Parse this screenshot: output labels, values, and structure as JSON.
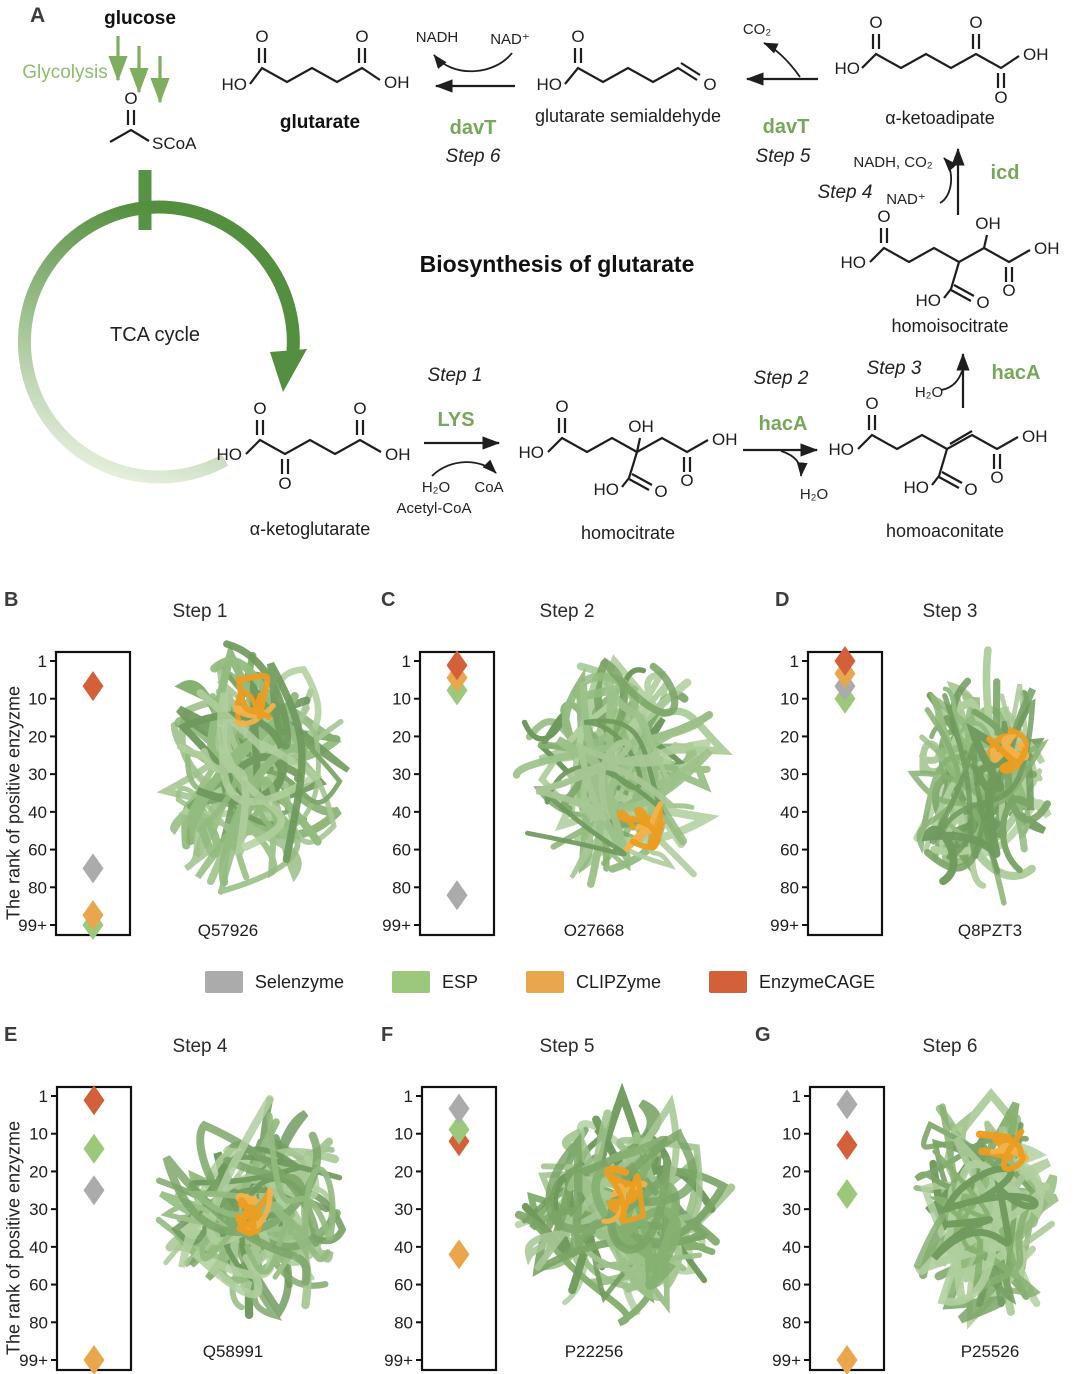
{
  "pathway": {
    "panel_letter": "A",
    "title": "Biosynthesis of glutarate",
    "glucose": "glucose",
    "glycolysis": "Glycolysis",
    "tca": "TCA cycle",
    "acetyl": {
      "o": "O",
      "scoa": "SCoA"
    },
    "molecules": {
      "glutarate": {
        "name": "glutarate",
        "ho": "HO",
        "o1": "O",
        "o2": "O",
        "oh": "OH"
      },
      "semialdehyde": {
        "name": "glutarate semialdehyde",
        "ho": "HO",
        "o1": "O",
        "o2": "O"
      },
      "ketoadipate": {
        "name": "α-ketoadipate",
        "ho": "HO",
        "o1": "O",
        "o2": "O",
        "o3": "O",
        "oh": "OH"
      },
      "homoisocitrate": {
        "name": "homoisocitrate",
        "ho1": "HO",
        "o1": "O",
        "oh1": "OH",
        "oh2": "OH",
        "o2": "O",
        "ho2": "HO",
        "o3": "O"
      },
      "homoaconitate": {
        "name": "homoaconitate",
        "ho1": "HO",
        "o1": "O",
        "oh": "OH",
        "o2": "O",
        "ho2": "HO",
        "o3": "O"
      },
      "homocitrate": {
        "name": "homocitrate",
        "ho1": "HO",
        "o1": "O",
        "oh1": "OH",
        "oh2": "OH",
        "o2": "O",
        "ho2": "HO",
        "o3": "O"
      },
      "ketoglutarate": {
        "name": "α-ketoglutarate",
        "ho": "HO",
        "o1": "O",
        "o2": "O",
        "o3": "O",
        "oh": "OH"
      }
    },
    "reactions": {
      "step1": {
        "label": "Step 1",
        "enzyme": "LYS",
        "sub1": "H₂O",
        "sub2": "Acetyl-CoA",
        "prod1": "CoA"
      },
      "step2": {
        "label": "Step 2",
        "enzyme": "hacA",
        "prod1": "H₂O"
      },
      "step3": {
        "label": "Step 3",
        "enzyme": "hacA",
        "sub1": "H₂O"
      },
      "step4": {
        "label": "Step 4",
        "enzyme": "icd",
        "sub1": "NAD⁺",
        "prod1": "NADH, CO₂"
      },
      "step5": {
        "label": "Step 5",
        "enzyme": "davT",
        "prod1": "CO₂"
      },
      "step6": {
        "label": "Step 6",
        "enzyme": "davT",
        "sub1": "NAD⁺",
        "prod1": "NADH"
      }
    },
    "colors": {
      "enzyme_green": "#76a75a",
      "glycolysis_green": "#8fbc6f",
      "tca_green": "#538f3e"
    }
  },
  "axis": {
    "ylabel": "The rank of positive enzyzme",
    "ticks": [
      "1",
      "10",
      "20",
      "30",
      "40",
      "60",
      "80",
      "99+"
    ]
  },
  "legend": [
    {
      "label": "Selenzyme",
      "color": "#ababab"
    },
    {
      "label": "ESP",
      "color": "#9cc87c"
    },
    {
      "label": "CLIPZyme",
      "color": "#eaa64c"
    },
    {
      "label": "EnzymeCAGE",
      "color": "#d4603a"
    }
  ],
  "chart_data": [
    {
      "type": "scatter",
      "letter": "B",
      "title": "Step 1",
      "protein_id": "Q57926",
      "ylabel": "The rank of positive enzyzme",
      "yticks": [
        "1",
        "10",
        "20",
        "30",
        "40",
        "60",
        "80",
        "99+"
      ],
      "points": [
        {
          "method": "EnzymeCAGE",
          "rank": 7
        },
        {
          "method": "Selenzyme",
          "rank": 70
        },
        {
          "method": "CLIPZyme",
          "rank": 94
        },
        {
          "method": "ESP",
          "rank": 99
        }
      ]
    },
    {
      "type": "scatter",
      "letter": "C",
      "title": "Step 2",
      "protein_id": "O27668",
      "yticks": [
        "1",
        "10",
        "20",
        "30",
        "40",
        "60",
        "80",
        "99+"
      ],
      "points": [
        {
          "method": "EnzymeCAGE",
          "rank": 2
        },
        {
          "method": "CLIPZyme",
          "rank": 5
        },
        {
          "method": "ESP",
          "rank": 8
        },
        {
          "method": "Selenzyme",
          "rank": 84
        }
      ]
    },
    {
      "type": "scatter",
      "letter": "D",
      "title": "Step 3",
      "protein_id": "Q8PZT3",
      "yticks": [
        "1",
        "10",
        "20",
        "30",
        "40",
        "60",
        "80",
        "99+"
      ],
      "points": [
        {
          "method": "EnzymeCAGE",
          "rank": 1
        },
        {
          "method": "CLIPZyme",
          "rank": 4
        },
        {
          "method": "Selenzyme",
          "rank": 7
        },
        {
          "method": "ESP",
          "rank": 10
        }
      ]
    },
    {
      "type": "scatter",
      "letter": "E",
      "title": "Step 4",
      "protein_id": "Q58991",
      "ylabel": "The rank of positive enzyzme",
      "yticks": [
        "1",
        "10",
        "20",
        "30",
        "40",
        "60",
        "80",
        "99+"
      ],
      "points": [
        {
          "method": "EnzymeCAGE",
          "rank": 2
        },
        {
          "method": "ESP",
          "rank": 14
        },
        {
          "method": "Selenzyme",
          "rank": 25
        },
        {
          "method": "CLIPZyme",
          "rank": 99
        }
      ]
    },
    {
      "type": "scatter",
      "letter": "F",
      "title": "Step 5",
      "protein_id": "P22256",
      "yticks": [
        "1",
        "10",
        "20",
        "30",
        "40",
        "60",
        "80",
        "99+"
      ],
      "points": [
        {
          "method": "Selenzyme",
          "rank": 4
        },
        {
          "method": "ESP",
          "rank": 9
        },
        {
          "method": "EnzymeCAGE",
          "rank": 12
        },
        {
          "method": "CLIPZyme",
          "rank": 44
        }
      ]
    },
    {
      "type": "scatter",
      "letter": "G",
      "title": "Step 6",
      "protein_id": "P25526",
      "yticks": [
        "1",
        "10",
        "20",
        "30",
        "40",
        "60",
        "80",
        "99+"
      ],
      "points": [
        {
          "method": "Selenzyme",
          "rank": 3
        },
        {
          "method": "EnzymeCAGE",
          "rank": 13
        },
        {
          "method": "ESP",
          "rank": 26
        },
        {
          "method": "CLIPZyme",
          "rank": 99
        }
      ]
    }
  ]
}
